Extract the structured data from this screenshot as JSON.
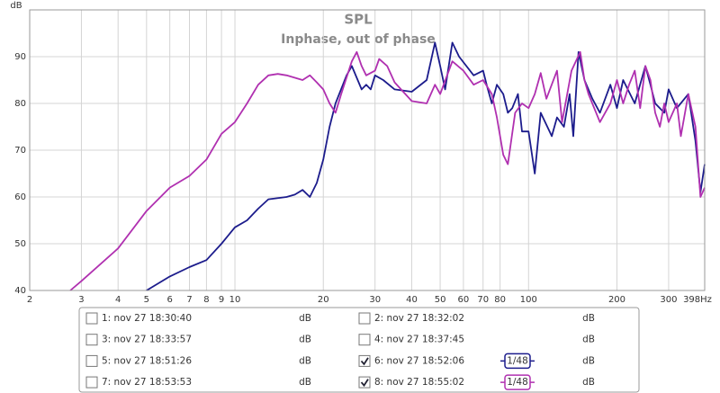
{
  "chart_data": {
    "type": "line",
    "title": "SPL",
    "subtitle": "Inphase, out of phase",
    "y_label": "dB",
    "x_scale": "log",
    "grid": true,
    "xlim": [
      2,
      398
    ],
    "ylim": [
      40,
      100
    ],
    "xticks": [
      2,
      3,
      4,
      5,
      6,
      7,
      8,
      9,
      10,
      20,
      30,
      40,
      50,
      60,
      70,
      80,
      100,
      200,
      300,
      {
        "value": 398,
        "label": "398Hz"
      }
    ],
    "yticks": [
      40,
      50,
      60,
      70,
      80,
      90
    ],
    "series": [
      {
        "name": "1: nov 27 18:30:40",
        "color": "#333333",
        "unit": "dB",
        "checked": false
      },
      {
        "name": "2: nov 27 18:32:02",
        "color": "#2a8a6a",
        "unit": "dB",
        "checked": false
      },
      {
        "name": "3: nov 27 18:33:57",
        "color": "#b08a10",
        "unit": "dB",
        "checked": false
      },
      {
        "name": "4: nov 27 18:37:45",
        "color": "#8a3a8a",
        "unit": "dB",
        "checked": false
      },
      {
        "name": "5: nov 27 18:51:26",
        "color": "#2a7a2a",
        "unit": "dB",
        "checked": false
      },
      {
        "name": "6: nov 27 18:52:06",
        "color": "#1c1c8c",
        "unit": "dB",
        "checked": true,
        "smoothing": "1/48",
        "x": [
          5,
          6,
          7,
          8,
          9,
          10,
          11,
          12,
          13,
          15,
          16,
          17,
          18,
          19,
          20,
          21,
          22,
          24,
          25,
          27,
          28,
          29,
          30,
          32,
          35,
          40,
          45,
          48,
          50,
          52,
          55,
          58,
          65,
          70,
          72,
          75,
          78,
          82,
          85,
          88,
          92,
          95,
          100,
          105,
          110,
          120,
          125,
          132,
          138,
          142,
          148,
          155,
          165,
          175,
          190,
          200,
          210,
          230,
          250,
          260,
          270,
          290,
          300,
          320,
          350,
          370,
          385,
          398
        ],
        "values": [
          40,
          43,
          45,
          46.5,
          50,
          53.5,
          55,
          57.5,
          59.5,
          60,
          60.5,
          61.5,
          60,
          63,
          68,
          75,
          80,
          86,
          88,
          83,
          84,
          83,
          86,
          85,
          83,
          82.5,
          85,
          93,
          88,
          83,
          93,
          90,
          86,
          87,
          84,
          80,
          84,
          82,
          78,
          79,
          82,
          74,
          74,
          65,
          78,
          73,
          77,
          75,
          82,
          73,
          91,
          85,
          81,
          78,
          84,
          79,
          85,
          80,
          88,
          84,
          80,
          78,
          83,
          79,
          82,
          72,
          61,
          67
        ]
      },
      {
        "name": "7: nov 27 18:53:53",
        "color": "#1a6a7a",
        "unit": "dB",
        "checked": false
      },
      {
        "name": "8: nov 27 18:55:02",
        "color": "#b030b0",
        "unit": "dB",
        "checked": true,
        "smoothing": "1/48",
        "x": [
          2.75,
          3,
          4,
          5,
          6,
          7,
          8,
          9,
          10,
          11,
          12,
          13,
          14,
          15,
          17,
          18,
          19,
          20,
          21,
          22,
          23,
          25,
          26,
          27,
          28,
          30,
          31,
          33,
          35,
          40,
          45,
          48,
          50,
          55,
          60,
          65,
          70,
          75,
          78,
          82,
          85,
          90,
          95,
          100,
          105,
          110,
          115,
          125,
          130,
          140,
          150,
          155,
          160,
          175,
          190,
          200,
          210,
          220,
          230,
          240,
          250,
          260,
          270,
          280,
          290,
          300,
          320,
          330,
          350,
          370,
          385,
          398
        ],
        "values": [
          40,
          42,
          49,
          57,
          62,
          64.5,
          68,
          73.5,
          76,
          80,
          84,
          86,
          86.3,
          86,
          85,
          86,
          84.5,
          83,
          80,
          78,
          82,
          89,
          91,
          88,
          86,
          87,
          89.5,
          88,
          84.5,
          80.5,
          80,
          84,
          82,
          89,
          87,
          84,
          85,
          82,
          77,
          69,
          67,
          78,
          80,
          79,
          82,
          86.5,
          81,
          87,
          76,
          87,
          91,
          85,
          82,
          76,
          80,
          85,
          80,
          84,
          87,
          79,
          88,
          85,
          78,
          75,
          80,
          76,
          80,
          73,
          82,
          75,
          60,
          62
        ]
      }
    ]
  }
}
